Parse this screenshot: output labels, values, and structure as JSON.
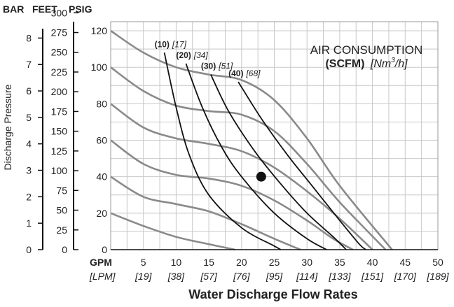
{
  "chart_data": {
    "type": "line",
    "title": "",
    "legend": {
      "line1": "AIR CONSUMPTION",
      "line2_bold": "(SCFM)",
      "line2_italic_pre": "[Nm",
      "line2_sup": "3",
      "line2_italic_post": "/h]"
    },
    "xlabel": "Water Discharge Flow Rates",
    "ylabel": "Discharge Pressure",
    "x_unit_gpm": "GPM",
    "x_unit_lpm": "[LPM]",
    "xlim": [
      0,
      50
    ],
    "ylim": [
      0,
      125
    ],
    "x_ticks": [
      {
        "v": 0,
        "label": "0",
        "lpm": ""
      },
      {
        "v": 5,
        "label": "5",
        "lpm": "[19]"
      },
      {
        "v": 10,
        "label": "10",
        "lpm": "[38]"
      },
      {
        "v": 15,
        "label": "15",
        "lpm": "[57]"
      },
      {
        "v": 20,
        "label": "20",
        "lpm": "[76]"
      },
      {
        "v": 25,
        "label": "25",
        "lpm": "[95]"
      },
      {
        "v": 30,
        "label": "30",
        "lpm": "[114]"
      },
      {
        "v": 35,
        "label": "35",
        "lpm": "[133]"
      },
      {
        "v": 40,
        "label": "40",
        "lpm": "[151]"
      },
      {
        "v": 45,
        "label": "45",
        "lpm": "[170]"
      },
      {
        "v": 50,
        "label": "50",
        "lpm": "[189]"
      }
    ],
    "psig_ticks": [
      "0",
      "20",
      "40",
      "60",
      "80",
      "100",
      "120"
    ],
    "feet_axis": {
      "header": "FEET",
      "ticks": [
        "0",
        "25",
        "50",
        "75",
        "100",
        "125",
        "150",
        "175",
        "200",
        "225",
        "250",
        "275",
        "300"
      ]
    },
    "bar_axis": {
      "header": "BAR",
      "ticks": [
        "0",
        "1",
        "2",
        "3",
        "4",
        "5",
        "6",
        "7",
        "8"
      ]
    },
    "psig_header": "PSIG",
    "grid": true,
    "performance_curves": [
      {
        "points": [
          [
            0,
            20
          ],
          [
            5,
            13
          ],
          [
            10,
            7
          ],
          [
            15,
            3
          ],
          [
            19,
            0
          ]
        ]
      },
      {
        "points": [
          [
            0,
            40
          ],
          [
            5,
            29
          ],
          [
            10,
            25
          ],
          [
            15,
            21
          ],
          [
            20,
            14
          ],
          [
            25,
            6
          ],
          [
            29,
            0
          ]
        ]
      },
      {
        "points": [
          [
            0,
            60
          ],
          [
            5,
            47
          ],
          [
            10,
            41
          ],
          [
            15,
            39
          ],
          [
            20,
            35
          ],
          [
            25,
            27
          ],
          [
            30,
            16
          ],
          [
            34,
            6
          ],
          [
            37,
            0
          ]
        ]
      },
      {
        "points": [
          [
            0,
            80
          ],
          [
            5,
            67
          ],
          [
            10,
            61
          ],
          [
            15,
            58
          ],
          [
            20,
            54
          ],
          [
            25,
            45
          ],
          [
            30,
            32
          ],
          [
            35,
            17
          ],
          [
            40,
            0
          ]
        ]
      },
      {
        "points": [
          [
            0,
            100
          ],
          [
            5,
            87
          ],
          [
            10,
            79
          ],
          [
            15,
            76
          ],
          [
            20,
            74
          ],
          [
            25,
            65
          ],
          [
            30,
            47
          ],
          [
            35,
            26
          ],
          [
            42,
            0
          ]
        ]
      },
      {
        "points": [
          [
            0,
            120
          ],
          [
            5,
            108
          ],
          [
            10,
            100
          ],
          [
            15,
            96
          ],
          [
            20,
            93
          ],
          [
            25,
            82
          ],
          [
            30,
            61
          ],
          [
            35,
            35
          ],
          [
            43,
            0
          ]
        ]
      }
    ],
    "air_consumption_curves": [
      {
        "label_bold": "(10)",
        "label_italic": "[17]",
        "points": [
          [
            8.2,
            108
          ],
          [
            10,
            78
          ],
          [
            12,
            52
          ],
          [
            15,
            30
          ],
          [
            20,
            12
          ],
          [
            25,
            2
          ],
          [
            26,
            0
          ]
        ]
      },
      {
        "label_bold": "(20)",
        "label_italic": "[34]",
        "points": [
          [
            11.5,
            102
          ],
          [
            14,
            78
          ],
          [
            17,
            56
          ],
          [
            20,
            40
          ],
          [
            25,
            20
          ],
          [
            30,
            6
          ],
          [
            33,
            0
          ]
        ]
      },
      {
        "label_bold": "(30)",
        "label_italic": "[51]",
        "points": [
          [
            15.3,
            96
          ],
          [
            18,
            76
          ],
          [
            22,
            54
          ],
          [
            26,
            36
          ],
          [
            30,
            20
          ],
          [
            34,
            7
          ],
          [
            36,
            0
          ]
        ]
      },
      {
        "label_bold": "(40)",
        "label_italic": "[68]",
        "points": [
          [
            19.5,
            92
          ],
          [
            23,
            72
          ],
          [
            27,
            52
          ],
          [
            31,
            34
          ],
          [
            35,
            16
          ],
          [
            38,
            3
          ],
          [
            39,
            0
          ]
        ]
      }
    ],
    "marker": {
      "x": 23,
      "y": 40
    }
  }
}
